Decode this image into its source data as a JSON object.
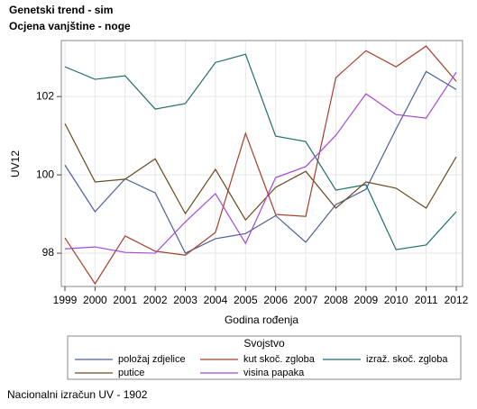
{
  "chart_data": {
    "type": "line",
    "title": "Genetski trend - sim",
    "subtitle": "Ocjena vanjštine - noge",
    "y_label": "UV12",
    "x_label": "Godina rođenja",
    "legend_title": "Svojstvo",
    "footnote": "Nacionalni izračun UV - 1902",
    "x": [
      1999,
      2000,
      2001,
      2002,
      2003,
      2004,
      2005,
      2006,
      2007,
      2008,
      2009,
      2010,
      2011,
      2012
    ],
    "xlim": [
      1998.88,
      2012.21
    ],
    "xticks": [
      1999,
      2000,
      2001,
      2002,
      2003,
      2004,
      2005,
      2006,
      2007,
      2008,
      2009,
      2010,
      2011,
      2012
    ],
    "ylim": [
      97.15,
      103.43
    ],
    "yticks": [
      98,
      100,
      102
    ],
    "grid": true,
    "series": [
      {
        "name": "položaj zdjelice",
        "color": "#4f5f98",
        "values": [
          100.25,
          99.06,
          99.9,
          99.54,
          98.0,
          98.37,
          98.5,
          98.96,
          98.28,
          99.24,
          99.63,
          101.17,
          102.64,
          102.18
        ]
      },
      {
        "name": "kut skoč. zgloba",
        "color": "#a3402e",
        "values": [
          98.39,
          97.22,
          98.44,
          98.05,
          97.95,
          98.53,
          101.06,
          98.99,
          98.94,
          102.48,
          103.17,
          102.76,
          103.29,
          102.39
        ]
      },
      {
        "name": "izraž. skoč. zgloba",
        "color": "#1f6f6a",
        "values": [
          102.76,
          102.44,
          102.53,
          101.68,
          101.82,
          102.87,
          103.08,
          100.99,
          100.85,
          99.61,
          99.75,
          98.09,
          98.21,
          99.06
        ]
      },
      {
        "name": "putice",
        "color": "#6b4a1e",
        "values": [
          101.31,
          99.82,
          99.89,
          100.41,
          99.01,
          100.14,
          98.85,
          99.68,
          100.09,
          99.15,
          99.82,
          99.66,
          99.15,
          100.46
        ]
      },
      {
        "name": "visina papaka",
        "color": "#a64ad6",
        "values": [
          98.11,
          98.16,
          98.02,
          98.0,
          98.8,
          99.52,
          98.25,
          99.93,
          100.21,
          101.01,
          102.07,
          101.54,
          101.45,
          102.62
        ]
      }
    ]
  }
}
